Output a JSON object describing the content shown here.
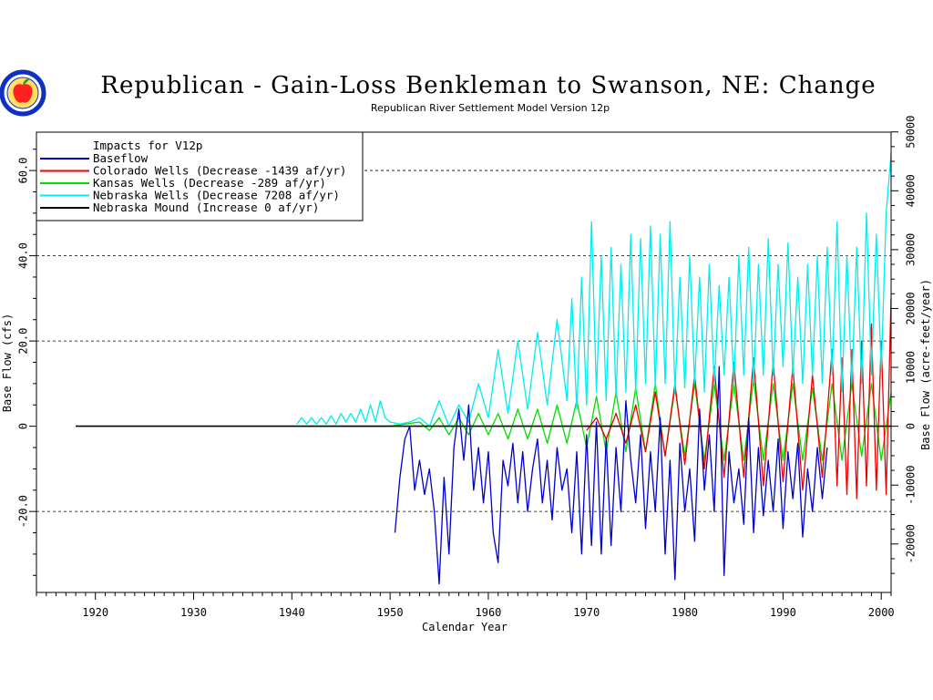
{
  "chart_data": {
    "type": "line",
    "title": "Republican - Gain-Loss Benkleman to Swanson, NE: Change",
    "subtitle": "Republican River Settlement Model Version 12p",
    "xlabel": "Calendar Year",
    "ylabel_left": "Base Flow (cfs)",
    "ylabel_right": "Base Flow (acre-feet/year)",
    "xlim": [
      1914,
      2001
    ],
    "ylim": [
      -39,
      69
    ],
    "x_ticks": [
      1920,
      1930,
      1940,
      1950,
      1960,
      1970,
      1980,
      1990,
      2000
    ],
    "y_ticks_left": [
      {
        "value": -20,
        "label": "-20.0"
      },
      {
        "value": 0,
        "label": "0"
      },
      {
        "value": 20,
        "label": "20.0"
      },
      {
        "value": 40,
        "label": "40.0"
      },
      {
        "value": 60,
        "label": "60.0"
      }
    ],
    "y_ticks_right": [
      {
        "value": -20000,
        "label": "-20000"
      },
      {
        "value": -10000,
        "label": "-10000"
      },
      {
        "value": 0,
        "label": "0"
      },
      {
        "value": 10000,
        "label": "10000"
      },
      {
        "value": 20000,
        "label": "20000"
      },
      {
        "value": 30000,
        "label": "30000"
      },
      {
        "value": 40000,
        "label": "40000"
      },
      {
        "value": 50000,
        "label": "50000"
      }
    ],
    "right_axis_factor": 724,
    "grid": "horizontal dashed at major left ticks",
    "legend": {
      "placement": "top-left",
      "header": "Impacts for V12p",
      "entries": [
        {
          "label": "Baseflow",
          "color": "#0000cc"
        },
        {
          "label": "Colorado Wells   (Decrease -1439  af/yr)",
          "color": "#ee0000"
        },
        {
          "label": "Kansas Wells     (Decrease  -289  af/yr)",
          "color": "#00dd00"
        },
        {
          "label": "Nebraska Wells   (Decrease  7208  af/yr)",
          "color": "#00eeee"
        },
        {
          "label": "Nebraska Mound  (Increase     0  af/yr)",
          "color": "#000000"
        }
      ]
    },
    "series": [
      {
        "name": "Baseflow",
        "color": "#0000cc",
        "x": [
          1950.5,
          1951.0,
          1951.5,
          1952.0,
          1952.5,
          1953.0,
          1953.5,
          1954.0,
          1954.5,
          1955.0,
          1955.5,
          1956.0,
          1956.5,
          1957.0,
          1957.5,
          1958.0,
          1958.5,
          1959.0,
          1959.5,
          1960.0,
          1960.5,
          1961.0,
          1961.5,
          1962.0,
          1962.5,
          1963.0,
          1963.5,
          1964.0,
          1964.5,
          1965.0,
          1965.5,
          1966.0,
          1966.5,
          1967.0,
          1967.5,
          1968.0,
          1968.5,
          1969.0,
          1969.5,
          1970.0,
          1970.5,
          1971.0,
          1971.5,
          1972.0,
          1972.5,
          1973.0,
          1973.5,
          1974.0,
          1974.5,
          1975.0,
          1975.5,
          1976.0,
          1976.5,
          1977.0,
          1977.5,
          1978.0,
          1978.5,
          1979.0,
          1979.5,
          1980.0,
          1980.5,
          1981.0,
          1981.5,
          1982.0,
          1982.5,
          1983.0,
          1983.5,
          1984.0,
          1984.5,
          1985.0,
          1985.5,
          1986.0,
          1986.5,
          1987.0,
          1987.5,
          1988.0,
          1988.5,
          1989.0,
          1989.5,
          1990.0,
          1990.5,
          1991.0,
          1991.5,
          1992.0,
          1992.5,
          1993.0,
          1993.5,
          1994.0,
          1994.5
        ],
        "values": [
          -25,
          -12,
          -3,
          0,
          -15,
          -8,
          -16,
          -10,
          -20,
          -37,
          -12,
          -30,
          -5,
          4,
          -8,
          5,
          -15,
          -5,
          -18,
          -6,
          -25,
          -32,
          -8,
          -14,
          -4,
          -18,
          -6,
          -20,
          -10,
          -3,
          -18,
          -8,
          -22,
          -5,
          -15,
          -10,
          -25,
          -6,
          -30,
          -2,
          -28,
          1,
          -30,
          -3,
          -28,
          -5,
          -20,
          6,
          -8,
          -18,
          -2,
          -24,
          -6,
          -20,
          2,
          -30,
          -8,
          -36,
          -4,
          -20,
          -10,
          -27,
          4,
          -15,
          -2,
          -20,
          14,
          -35,
          -6,
          -18,
          -10,
          -23,
          2,
          -25,
          -5,
          -21,
          -8,
          -20,
          -3,
          -24,
          -6,
          -17,
          -4,
          -26,
          -10,
          -20,
          -5,
          -17,
          -5
        ]
      },
      {
        "name": "Colorado Wells   (Decrease -1439  af/yr)",
        "color": "#ee0000",
        "x": [
          1970.0,
          1971.0,
          1972.0,
          1973.0,
          1974.0,
          1975.0,
          1976.0,
          1977.0,
          1978.0,
          1979.0,
          1980.0,
          1981.0,
          1982.0,
          1983.0,
          1984.0,
          1985.0,
          1986.0,
          1987.0,
          1988.0,
          1989.0,
          1990.0,
          1991.0,
          1992.0,
          1993.0,
          1994.0,
          1995.0,
          1995.5,
          1996.0,
          1996.5,
          1997.0,
          1997.5,
          1998.0,
          1998.5,
          1999.0,
          1999.5,
          2000.0,
          2000.5,
          2001.0
        ],
        "values": [
          -1,
          2,
          -3,
          3,
          -4,
          5,
          -6,
          8,
          -7,
          10,
          -9,
          12,
          -10,
          14,
          -12,
          15,
          -12,
          16,
          -14,
          15,
          -13,
          14,
          -15,
          12,
          -12,
          18,
          -14,
          16,
          -16,
          18,
          -17,
          20,
          -14,
          24,
          -15,
          20,
          -16,
          30
        ]
      },
      {
        "name": "Kansas Wells     (Decrease  -289  af/yr)",
        "color": "#00dd00",
        "x": [
          1940.0,
          1945.0,
          1950.0,
          1953.0,
          1954.0,
          1955.0,
          1956.0,
          1957.0,
          1958.0,
          1959.0,
          1960.0,
          1961.0,
          1962.0,
          1963.0,
          1964.0,
          1965.0,
          1966.0,
          1967.0,
          1968.0,
          1969.0,
          1970.0,
          1971.0,
          1972.0,
          1973.0,
          1974.0,
          1975.0,
          1976.0,
          1977.0,
          1978.0,
          1979.0,
          1980.0,
          1981.0,
          1982.0,
          1983.0,
          1984.0,
          1985.0,
          1986.0,
          1987.0,
          1988.0,
          1989.0,
          1990.0,
          1991.0,
          1992.0,
          1993.0,
          1994.0,
          1995.0,
          1996.0,
          1997.0,
          1998.0,
          1999.0,
          2000.0,
          2001.0
        ],
        "values": [
          0,
          0,
          0,
          1,
          -1,
          2,
          -2,
          2,
          -2,
          3,
          -2,
          3,
          -3,
          4,
          -3,
          4,
          -4,
          5,
          -4,
          6,
          -5,
          7,
          -6,
          8,
          -6,
          9,
          -6,
          10,
          -7,
          9,
          -7,
          10,
          -8,
          10,
          -8,
          10,
          -8,
          11,
          -8,
          10,
          -8,
          10,
          -8,
          9,
          -8,
          10,
          -8,
          10,
          -7,
          10,
          -8,
          8
        ]
      },
      {
        "name": "Nebraska Wells   (Decrease  7208  af/yr)",
        "color": "#00eeee",
        "x": [
          1940.5,
          1941.0,
          1941.5,
          1942.0,
          1942.5,
          1943.0,
          1943.5,
          1944.0,
          1944.5,
          1945.0,
          1945.5,
          1946.0,
          1946.5,
          1947.0,
          1947.5,
          1948.0,
          1948.5,
          1949.0,
          1949.5,
          1950.0,
          1951.0,
          1952.0,
          1953.0,
          1954.0,
          1955.0,
          1956.0,
          1957.0,
          1958.0,
          1959.0,
          1960.0,
          1961.0,
          1962.0,
          1963.0,
          1964.0,
          1965.0,
          1966.0,
          1967.0,
          1968.0,
          1968.5,
          1969.0,
          1969.5,
          1970.0,
          1970.5,
          1971.0,
          1971.5,
          1972.0,
          1972.5,
          1973.0,
          1973.5,
          1974.0,
          1974.5,
          1975.0,
          1975.5,
          1976.0,
          1976.5,
          1977.0,
          1977.5,
          1978.0,
          1978.5,
          1979.0,
          1979.5,
          1980.0,
          1980.5,
          1981.0,
          1981.5,
          1982.0,
          1982.5,
          1983.0,
          1983.5,
          1984.0,
          1984.5,
          1985.0,
          1985.5,
          1986.0,
          1986.5,
          1987.0,
          1987.5,
          1988.0,
          1988.5,
          1989.0,
          1989.5,
          1990.0,
          1990.5,
          1991.0,
          1991.5,
          1992.0,
          1992.5,
          1993.0,
          1993.5,
          1994.0,
          1994.5,
          1995.0,
          1995.5,
          1996.0,
          1996.5,
          1997.0,
          1997.5,
          1998.0,
          1998.5,
          1999.0,
          1999.5,
          2000.0,
          2000.5,
          2001.0
        ],
        "values": [
          0.5,
          2,
          0.5,
          2,
          0.5,
          2,
          0.5,
          2.5,
          0.5,
          3,
          1,
          3,
          1,
          4,
          1,
          5,
          1,
          6,
          2,
          1,
          0.5,
          1,
          2,
          0,
          6,
          0,
          5,
          1,
          10,
          2,
          18,
          3,
          20,
          4,
          22,
          5,
          25,
          6,
          30,
          4,
          35,
          5,
          48,
          8,
          40,
          6,
          42,
          7,
          38,
          8,
          45,
          8,
          44,
          10,
          47,
          9,
          45,
          10,
          48,
          8,
          35,
          9,
          40,
          10,
          35,
          8,
          38,
          10,
          33,
          12,
          35,
          10,
          40,
          12,
          42,
          10,
          38,
          12,
          44,
          12,
          38,
          14,
          43,
          12,
          35,
          10,
          38,
          12,
          40,
          10,
          42,
          12,
          48,
          8,
          40,
          10,
          42,
          10,
          50,
          12,
          45,
          13,
          50,
          64
        ]
      },
      {
        "name": "Nebraska Mound  (Increase     0  af/yr)",
        "color": "#000000",
        "x": [
          1918,
          2001
        ],
        "values": [
          0,
          0
        ]
      }
    ]
  },
  "logo": {
    "name": "state-seal-logo",
    "fill": "#ff2020",
    "ring": "#1030c0",
    "leaf": "#20a020"
  }
}
